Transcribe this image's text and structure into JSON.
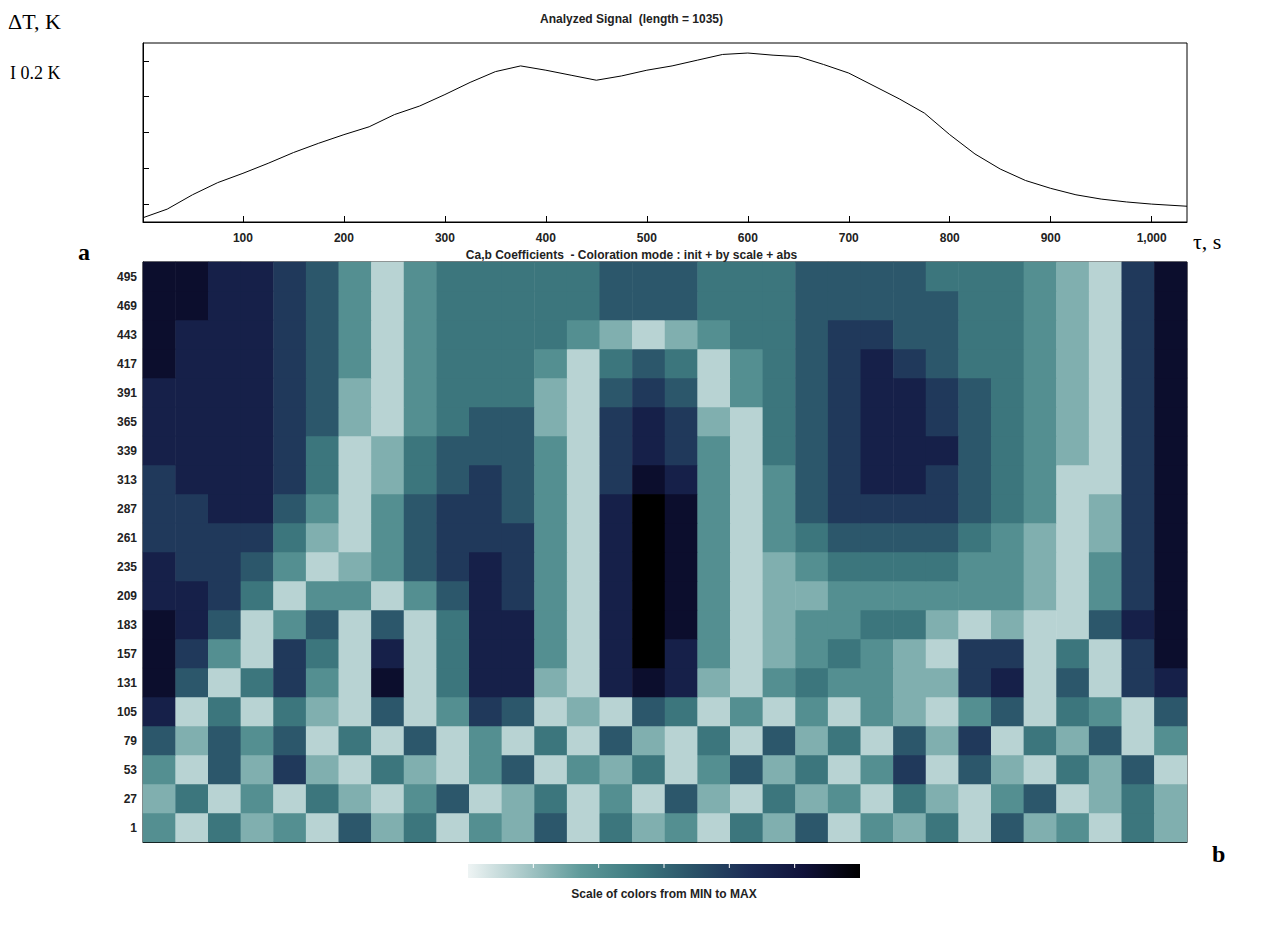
{
  "chart_data": [
    {
      "type": "line",
      "panel": "a",
      "title": "Analyzed Signal  (length = 1035)",
      "y_label": "ΔT, K",
      "x_label": "τ, s",
      "annotations": [
        "I 0.2 K"
      ],
      "x": [
        1,
        25,
        50,
        75,
        100,
        125,
        150,
        175,
        200,
        225,
        250,
        275,
        300,
        325,
        350,
        375,
        400,
        425,
        450,
        475,
        500,
        525,
        550,
        575,
        600,
        625,
        650,
        675,
        700,
        725,
        750,
        775,
        800,
        825,
        850,
        875,
        900,
        925,
        950,
        975,
        1000,
        1035
      ],
      "values": [
        0.06,
        0.18,
        0.38,
        0.55,
        0.68,
        0.82,
        0.97,
        1.1,
        1.22,
        1.33,
        1.5,
        1.62,
        1.78,
        1.95,
        2.1,
        2.18,
        2.12,
        2.05,
        1.98,
        2.04,
        2.12,
        2.18,
        2.26,
        2.34,
        2.36,
        2.33,
        2.31,
        2.2,
        2.08,
        1.9,
        1.72,
        1.52,
        1.22,
        0.95,
        0.74,
        0.58,
        0.47,
        0.38,
        0.32,
        0.28,
        0.25,
        0.22
      ],
      "color": "#000000",
      "xlim": [
        1,
        1035
      ],
      "xticks": [
        100,
        200,
        300,
        400,
        500,
        600,
        700,
        800,
        900,
        1000
      ],
      "ylim": [
        0,
        2.5
      ],
      "yticks": [
        0.25,
        0.75,
        1.25,
        1.75,
        2.25
      ],
      "tick_labels": "x",
      "grid": false
    },
    {
      "type": "heatmap",
      "panel": "b",
      "title": "Ca,b Coefficients  - Coloration mode : init + by scale + abs",
      "x": [
        16,
        49,
        81,
        113,
        146,
        178,
        210,
        243,
        275,
        307,
        340,
        372,
        404,
        437,
        469,
        501,
        534,
        566,
        598,
        631,
        663,
        695,
        728,
        760,
        792,
        825,
        857,
        889,
        922,
        954,
        986,
        1019
      ],
      "y": [
        1,
        27,
        53,
        79,
        105,
        131,
        157,
        183,
        209,
        235,
        261,
        287,
        313,
        339,
        365,
        391,
        417,
        443,
        469,
        495
      ],
      "cells": [
        [
          3,
          1,
          4,
          2,
          3,
          1,
          5,
          2,
          4,
          1,
          3,
          2,
          5,
          1,
          4,
          2,
          3,
          1,
          4,
          2,
          5,
          1,
          3,
          2,
          4,
          1,
          5,
          2,
          3,
          1,
          4,
          2
        ],
        [
          2,
          4,
          1,
          3,
          1,
          4,
          2,
          1,
          3,
          5,
          1,
          2,
          4,
          1,
          3,
          1,
          5,
          2,
          1,
          4,
          2,
          3,
          1,
          4,
          2,
          1,
          3,
          5,
          1,
          2,
          4,
          2
        ],
        [
          3,
          1,
          5,
          2,
          6,
          2,
          1,
          4,
          2,
          1,
          3,
          5,
          1,
          3,
          2,
          4,
          1,
          3,
          5,
          2,
          4,
          1,
          3,
          6,
          1,
          5,
          2,
          1,
          4,
          2,
          5,
          1
        ],
        [
          5,
          2,
          5,
          3,
          5,
          1,
          4,
          1,
          5,
          1,
          3,
          1,
          4,
          1,
          5,
          2,
          1,
          4,
          1,
          5,
          2,
          4,
          1,
          5,
          2,
          6,
          1,
          4,
          2,
          5,
          1,
          3
        ],
        [
          7,
          1,
          4,
          1,
          4,
          2,
          1,
          5,
          1,
          3,
          6,
          5,
          1,
          2,
          1,
          5,
          4,
          1,
          3,
          1,
          3,
          1,
          3,
          2,
          1,
          3,
          5,
          1,
          4,
          3,
          1,
          5
        ],
        [
          8,
          5,
          1,
          4,
          6,
          3,
          1,
          8,
          1,
          4,
          7,
          7,
          2,
          1,
          7,
          8,
          7,
          2,
          1,
          3,
          4,
          3,
          3,
          2,
          2,
          6,
          7,
          1,
          5,
          1,
          6,
          7
        ],
        [
          8,
          6,
          3,
          1,
          6,
          4,
          1,
          7,
          1,
          4,
          7,
          7,
          3,
          1,
          7,
          9,
          7,
          3,
          1,
          2,
          3,
          4,
          3,
          2,
          1,
          6,
          6,
          1,
          4,
          1,
          6,
          8
        ],
        [
          8,
          7,
          5,
          1,
          3,
          5,
          1,
          5,
          1,
          4,
          7,
          7,
          3,
          1,
          7,
          9,
          8,
          3,
          1,
          2,
          3,
          3,
          4,
          4,
          2,
          1,
          2,
          1,
          1,
          5,
          7,
          8
        ],
        [
          7,
          7,
          6,
          4,
          1,
          3,
          3,
          1,
          3,
          5,
          7,
          6,
          3,
          1,
          7,
          9,
          8,
          3,
          1,
          2,
          2,
          3,
          3,
          3,
          3,
          3,
          3,
          2,
          1,
          3,
          6,
          8
        ],
        [
          7,
          6,
          6,
          5,
          3,
          1,
          2,
          3,
          5,
          6,
          7,
          6,
          3,
          1,
          7,
          9,
          8,
          3,
          1,
          2,
          3,
          4,
          4,
          4,
          4,
          3,
          3,
          2,
          1,
          3,
          6,
          8
        ],
        [
          6,
          6,
          6,
          6,
          4,
          2,
          1,
          3,
          5,
          6,
          6,
          6,
          3,
          1,
          7,
          9,
          8,
          3,
          1,
          3,
          4,
          5,
          5,
          5,
          5,
          4,
          3,
          2,
          1,
          2,
          6,
          8
        ],
        [
          6,
          6,
          7,
          7,
          5,
          3,
          1,
          3,
          5,
          6,
          6,
          5,
          3,
          1,
          7,
          9,
          8,
          3,
          1,
          3,
          5,
          6,
          6,
          6,
          6,
          5,
          4,
          3,
          1,
          2,
          6,
          8
        ],
        [
          6,
          7,
          7,
          7,
          6,
          4,
          1,
          2,
          4,
          5,
          6,
          5,
          3,
          1,
          6,
          8,
          7,
          3,
          1,
          3,
          5,
          6,
          7,
          7,
          6,
          5,
          4,
          3,
          1,
          1,
          6,
          8
        ],
        [
          7,
          7,
          7,
          7,
          6,
          4,
          1,
          2,
          4,
          5,
          5,
          5,
          3,
          1,
          6,
          7,
          6,
          3,
          1,
          4,
          5,
          6,
          7,
          7,
          7,
          5,
          4,
          3,
          2,
          1,
          6,
          8
        ],
        [
          7,
          7,
          7,
          7,
          6,
          5,
          2,
          1,
          3,
          4,
          5,
          5,
          2,
          1,
          6,
          7,
          6,
          2,
          1,
          4,
          5,
          6,
          7,
          7,
          6,
          5,
          4,
          3,
          2,
          1,
          6,
          8
        ],
        [
          7,
          7,
          7,
          7,
          6,
          5,
          2,
          1,
          3,
          4,
          4,
          4,
          2,
          1,
          5,
          6,
          5,
          1,
          3,
          4,
          5,
          6,
          7,
          7,
          6,
          5,
          4,
          3,
          2,
          1,
          6,
          8
        ],
        [
          8,
          7,
          7,
          7,
          6,
          5,
          3,
          1,
          3,
          4,
          4,
          4,
          3,
          1,
          4,
          5,
          4,
          1,
          3,
          4,
          5,
          6,
          7,
          6,
          5,
          4,
          4,
          3,
          2,
          1,
          6,
          8
        ],
        [
          8,
          7,
          7,
          7,
          6,
          5,
          3,
          1,
          3,
          4,
          4,
          4,
          4,
          3,
          2,
          1,
          2,
          3,
          4,
          4,
          5,
          6,
          6,
          5,
          5,
          4,
          4,
          3,
          2,
          1,
          6,
          8
        ],
        [
          8,
          8,
          7,
          7,
          6,
          5,
          3,
          1,
          3,
          4,
          4,
          4,
          4,
          4,
          5,
          5,
          5,
          4,
          4,
          4,
          5,
          5,
          5,
          5,
          5,
          4,
          4,
          3,
          2,
          1,
          6,
          8
        ],
        [
          8,
          8,
          7,
          7,
          6,
          5,
          3,
          1,
          3,
          4,
          4,
          4,
          4,
          4,
          5,
          5,
          5,
          4,
          4,
          4,
          5,
          5,
          5,
          5,
          4,
          4,
          4,
          3,
          2,
          1,
          6,
          8
        ]
      ],
      "colorbar": {
        "range": [
          0,
          9
        ],
        "label": "Scale of colors from MIN to MAX"
      },
      "tick_labels": "y"
    }
  ]
}
